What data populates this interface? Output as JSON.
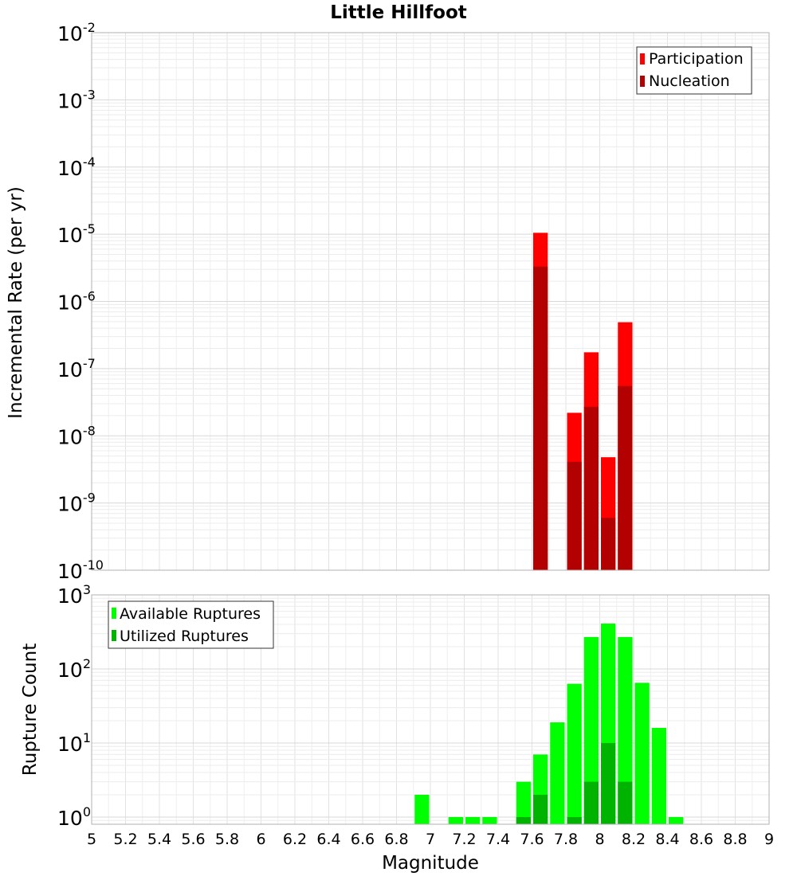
{
  "chart_data": [
    {
      "type": "bar",
      "title": "Little Hillfoot",
      "ylabel": "Incremental Rate (per yr)",
      "xlabel": "",
      "yscale": "log",
      "ylim": [
        1e-10,
        0.01
      ],
      "xlim": [
        5,
        9
      ],
      "y_tick_exponents": [
        "-2",
        "-3",
        "-4",
        "-5",
        "-6",
        "-7",
        "-8",
        "-9",
        "-10"
      ],
      "legend": {
        "position": "top-right",
        "entries": [
          "Participation",
          "Nucleation"
        ]
      },
      "colors": {
        "Participation": "#ff0000",
        "Nucleation": "#b30000"
      },
      "series": [
        {
          "name": "Participation",
          "x": [
            7.65,
            7.85,
            7.95,
            8.05,
            8.15
          ],
          "values": [
            1.05e-05,
            2.2e-08,
            1.75e-07,
            4.8e-09,
            4.9e-07
          ]
        },
        {
          "name": "Nucleation",
          "x": [
            7.65,
            7.85,
            7.95,
            8.05,
            8.15
          ],
          "values": [
            3.3e-06,
            4.1e-09,
            2.7e-08,
            6e-10,
            5.5e-08
          ]
        }
      ]
    },
    {
      "type": "bar",
      "title": "",
      "ylabel": "Rupture Count",
      "xlabel": "Magnitude",
      "yscale": "log",
      "ylim": [
        0.8,
        1000
      ],
      "xlim": [
        5,
        9
      ],
      "y_tick_exponents": [
        "3",
        "2",
        "1",
        "0"
      ],
      "x_ticks": [
        "5",
        "5.2",
        "5.4",
        "5.6",
        "5.8",
        "6",
        "6.2",
        "6.4",
        "6.6",
        "6.8",
        "7",
        "7.2",
        "7.4",
        "7.6",
        "7.8",
        "8",
        "8.2",
        "8.4",
        "8.6",
        "8.8",
        "9"
      ],
      "legend": {
        "position": "top-left",
        "entries": [
          "Available Ruptures",
          "Utilized Ruptures"
        ]
      },
      "colors": {
        "Available Ruptures": "#00ff00",
        "Utilized Ruptures": "#00b300"
      },
      "series": [
        {
          "name": "Available Ruptures",
          "x": [
            6.95,
            7.15,
            7.25,
            7.35,
            7.55,
            7.65,
            7.75,
            7.85,
            7.95,
            8.05,
            8.15,
            8.25,
            8.35,
            8.45
          ],
          "values": [
            2,
            1,
            1,
            1,
            3,
            7,
            19,
            63,
            270,
            410,
            270,
            65,
            16,
            1
          ]
        },
        {
          "name": "Utilized Ruptures",
          "x": [
            7.55,
            7.65,
            7.85,
            7.95,
            8.05,
            8.15
          ],
          "values": [
            1,
            2,
            1,
            3,
            10,
            3
          ]
        }
      ]
    }
  ]
}
